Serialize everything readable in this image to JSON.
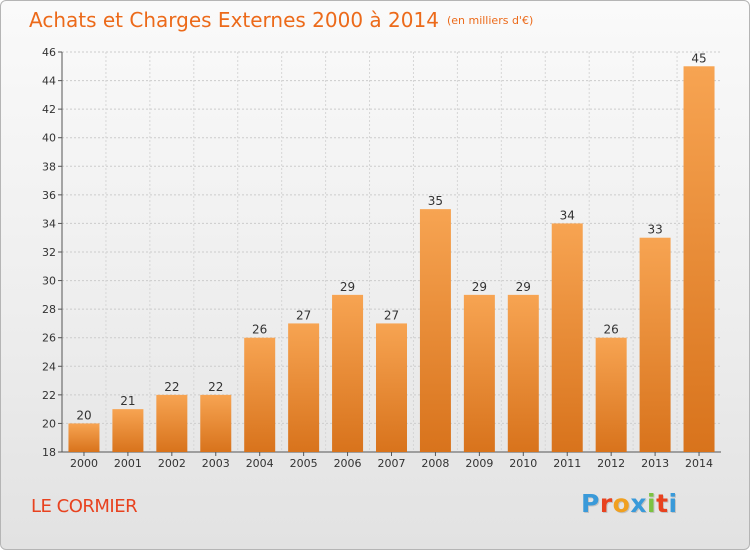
{
  "header": {
    "title": "Achats et Charges Externes 2000 à 2014",
    "unit": "(en milliers d'€)"
  },
  "footer": {
    "commune": "LE CORMIER",
    "logo_letters": [
      "P",
      "r",
      "o",
      "x",
      "i",
      "t",
      "i"
    ]
  },
  "colors": {
    "title": "#ec6a1a",
    "commune": "#e8421f",
    "bar_light": "#f7a452",
    "bar_dark": "#d8731c",
    "logo": [
      "#3a9ad9",
      "#e8421f",
      "#f0a020",
      "#3a9ad9",
      "#7cc242",
      "#e8421f",
      "#3a9ad9"
    ]
  },
  "chart_data": {
    "type": "bar",
    "categories": [
      "2000",
      "2001",
      "2002",
      "2003",
      "2004",
      "2005",
      "2006",
      "2007",
      "2008",
      "2009",
      "2010",
      "2011",
      "2012",
      "2013",
      "2014"
    ],
    "values": [
      20,
      21,
      22,
      22,
      26,
      27,
      29,
      27,
      35,
      29,
      29,
      34,
      26,
      33,
      45
    ],
    "title": "Achats et Charges Externes 2000 à 2014",
    "ylim": [
      18,
      46
    ],
    "yticks": [
      18,
      20,
      22,
      24,
      26,
      28,
      30,
      32,
      34,
      36,
      38,
      40,
      42,
      44,
      46
    ],
    "grid": true,
    "data_labels": true
  }
}
